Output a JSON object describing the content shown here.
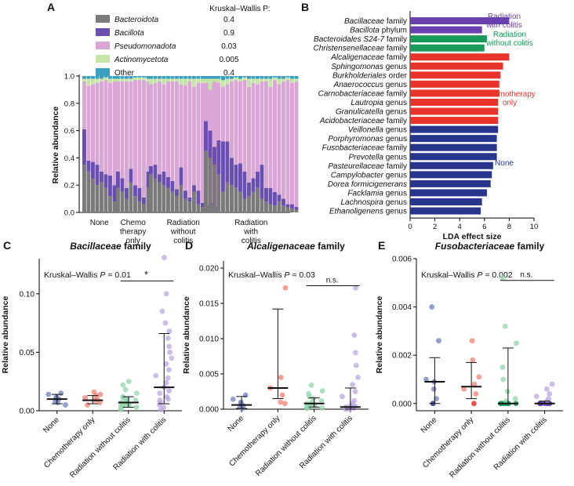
{
  "colors": {
    "Bacteroidota": "#7a7a7a",
    "Bacillota": "#6a4fb0",
    "Pseudomonadota": "#d9a6d6",
    "Actinomycetota": "#c6e5a8",
    "Other": "#3a9fc0",
    "radiation_colitis": "#6a3fb0",
    "radiation_no_colitis": "#1a9a58",
    "chemo": "#e8342a",
    "none": "#27358c",
    "dot_none": "#6f7fc0",
    "dot_chemo": "#f08070",
    "dot_rad_no": "#90d4a8",
    "dot_rad_col": "#b9a6e0"
  },
  "chart_data": [
    {
      "panel": "A",
      "type": "bar",
      "stacked": true,
      "ylabel": "Relative abundance",
      "ylim": [
        0,
        1.0
      ],
      "yticks": [
        "0.0",
        "0.2",
        "0.4",
        "0.6",
        "0.8",
        "1.0"
      ],
      "stat_header": "Kruskal–Wallis P:",
      "legend": [
        {
          "name": "Bacteroidota",
          "p": "0.4",
          "color": "#7a7a7a"
        },
        {
          "name": "Bacillota",
          "p": "0.9",
          "color": "#6a4fb0"
        },
        {
          "name": "Pseudomonadota",
          "p": "0.03",
          "color": "#d9a6d6"
        },
        {
          "name": "Actinomycetota",
          "p": "0.005",
          "color": "#c6e5a8"
        },
        {
          "name": "Other",
          "p": "0.4",
          "color": "#3a9fc0"
        }
      ],
      "groups": [
        {
          "label_lines": [
            "None"
          ],
          "samples": [
            [
              0.35,
              0.26,
              0.35,
              0.02
            ],
            [
              0.3,
              0.08,
              0.55,
              0.05
            ],
            [
              0.25,
              0.12,
              0.57,
              0.04
            ],
            [
              0.2,
              0.15,
              0.6,
              0.03
            ],
            [
              0.22,
              0.08,
              0.66,
              0.02
            ],
            [
              0.18,
              0.1,
              0.69,
              0.02
            ],
            [
              0.12,
              0.15,
              0.68,
              0.03
            ],
            [
              0.08,
              0.12,
              0.76,
              0.02
            ]
          ]
        },
        {
          "label_lines": [
            "Chemo",
            "therapy",
            "only"
          ],
          "samples": [
            [
              0.18,
              0.12,
              0.66,
              0.02
            ],
            [
              0.15,
              0.1,
              0.71,
              0.02
            ],
            [
              0.1,
              0.08,
              0.78,
              0.02
            ],
            [
              0.22,
              0.1,
              0.64,
              0.02
            ],
            [
              0.12,
              0.08,
              0.77,
              0.02
            ],
            [
              0.08,
              0.1,
              0.79,
              0.02
            ],
            [
              0.06,
              0.05,
              0.86,
              0.02
            ],
            [
              0.18,
              0.12,
              0.66,
              0.02
            ]
          ]
        },
        {
          "label_lines": [
            "Radiation",
            "without",
            "colitis"
          ],
          "samples": [
            [
              0.28,
              0.06,
              0.6,
              0.04
            ],
            [
              0.25,
              0.1,
              0.6,
              0.03
            ],
            [
              0.22,
              0.06,
              0.68,
              0.02
            ],
            [
              0.2,
              0.1,
              0.64,
              0.04
            ],
            [
              0.18,
              0.08,
              0.7,
              0.02
            ],
            [
              0.15,
              0.08,
              0.73,
              0.02
            ],
            [
              0.12,
              0.05,
              0.79,
              0.02
            ],
            [
              0.2,
              0.13,
              0.61,
              0.04
            ],
            [
              0.1,
              0.06,
              0.77,
              0.05
            ],
            [
              0.08,
              0.03,
              0.85,
              0.02
            ],
            [
              0.15,
              0.05,
              0.72,
              0.06
            ],
            [
              0.06,
              0.1,
              0.79,
              0.03
            ],
            [
              0.04,
              0.03,
              0.88,
              0.03
            ],
            [
              0.03,
              0.02,
              0.91,
              0.02
            ],
            [
              0.05,
              0.02,
              0.88,
              0.03
            ],
            [
              0.02,
              0.02,
              0.92,
              0.02
            ]
          ]
        },
        {
          "label_lines": [
            "Radiation",
            "with",
            "colitis"
          ],
          "samples": [
            [
              0.45,
              0.22,
              0.28,
              0.03
            ],
            [
              0.4,
              0.2,
              0.3,
              0.08
            ],
            [
              0.35,
              0.13,
              0.48,
              0.02
            ],
            [
              0.28,
              0.25,
              0.42,
              0.03
            ],
            [
              0.15,
              0.37,
              0.4,
              0.05
            ],
            [
              0.22,
              0.3,
              0.42,
              0.04
            ],
            [
              0.2,
              0.2,
              0.56,
              0.02
            ],
            [
              0.18,
              0.17,
              0.62,
              0.02
            ],
            [
              0.15,
              0.21,
              0.6,
              0.02
            ],
            [
              0.1,
              0.2,
              0.67,
              0.02
            ],
            [
              0.12,
              0.1,
              0.7,
              0.06
            ],
            [
              0.15,
              0.1,
              0.7,
              0.03
            ],
            [
              0.18,
              0.12,
              0.64,
              0.04
            ],
            [
              0.1,
              0.25,
              0.61,
              0.02
            ],
            [
              0.08,
              0.1,
              0.78,
              0.02
            ],
            [
              0.06,
              0.12,
              0.74,
              0.06
            ],
            [
              0.05,
              0.1,
              0.82,
              0.02
            ],
            [
              0.08,
              0.05,
              0.81,
              0.04
            ],
            [
              0.05,
              0.05,
              0.86,
              0.02
            ],
            [
              0.04,
              0.02,
              0.91,
              0.02
            ],
            [
              0.03,
              0.03,
              0.89,
              0.03
            ],
            [
              0.02,
              0.02,
              0.92,
              0.02
            ]
          ]
        }
      ]
    },
    {
      "panel": "B",
      "type": "bar",
      "orientation": "horizontal",
      "xlabel": "LDA effect size",
      "xlim": [
        0,
        10
      ],
      "xticks": [
        "0",
        "2",
        "4",
        "6",
        "8",
        "10"
      ],
      "groups": [
        {
          "label_lines": [
            "Radiation",
            "with colitis"
          ],
          "color": "#6a3fb0"
        },
        {
          "label_lines": [
            "Radiation",
            "without colitis"
          ],
          "color": "#1a9a58"
        },
        {
          "label_lines": [
            "Chemotherapy",
            "only"
          ],
          "color": "#e8342a"
        },
        {
          "label_lines": [
            "None"
          ],
          "color": "#27358c"
        }
      ],
      "taxa": [
        {
          "name": "Bacillaceae",
          "rank": "family",
          "value": 8.0,
          "group": 0
        },
        {
          "name": "Bacillota",
          "rank": "phylum",
          "value": 5.8,
          "group": 0
        },
        {
          "name": "Bacteroidales S24-7",
          "rank": "family",
          "value": 6.2,
          "group": 1
        },
        {
          "name": "Christensenellaceae",
          "rank": "family",
          "value": 6.0,
          "group": 1
        },
        {
          "name": "Alcaligenaceae",
          "rank": "family",
          "value": 8.0,
          "group": 2
        },
        {
          "name": "Sphingomonas",
          "rank": "genus",
          "value": 7.5,
          "group": 2
        },
        {
          "name": "Burkholderiales",
          "rank": "order",
          "value": 7.3,
          "group": 2
        },
        {
          "name": "Anaerococcus",
          "rank": "genus",
          "value": 7.2,
          "group": 2
        },
        {
          "name": "Carnobacteriaceae",
          "rank": "family",
          "value": 7.2,
          "group": 2
        },
        {
          "name": "Lautropia",
          "rank": "genus",
          "value": 7.1,
          "group": 2
        },
        {
          "name": "Granulicatella",
          "rank": "genus",
          "value": 7.1,
          "group": 2
        },
        {
          "name": "Acidobacteriaceae",
          "rank": "family",
          "value": 7.1,
          "group": 2
        },
        {
          "name": "Veillonella",
          "rank": "genus",
          "value": 7.1,
          "group": 3
        },
        {
          "name": "Porphyromonas",
          "rank": "genus",
          "value": 7.0,
          "group": 3
        },
        {
          "name": "Fusobacteriaceae",
          "rank": "family",
          "value": 7.0,
          "group": 3
        },
        {
          "name": "Prevotella",
          "rank": "genus",
          "value": 7.0,
          "group": 3
        },
        {
          "name": "Pasteurellaceae",
          "rank": "family",
          "value": 6.7,
          "group": 3
        },
        {
          "name": "Campylobacter",
          "rank": "genus",
          "value": 6.6,
          "group": 3
        },
        {
          "name": "Dorea formicigenerans",
          "rank": "",
          "value": 6.5,
          "group": 3
        },
        {
          "name": "Facklamia",
          "rank": "genus",
          "value": 6.2,
          "group": 3
        },
        {
          "name": "Lachnospira",
          "rank": "genus",
          "value": 5.8,
          "group": 3
        },
        {
          "name": "Ethanoligenens",
          "rank": "genus",
          "value": 5.7,
          "group": 3
        }
      ]
    },
    {
      "panel": "C",
      "type": "scatter",
      "title_name": "Bacillaceae",
      "title_rank": "family",
      "ylabel": "Relative abundance",
      "ylim": [
        0,
        0.13
      ],
      "yticks": [
        {
          "v": 0,
          "t": "0.00"
        },
        {
          "v": 0.05,
          "t": "0.05"
        },
        {
          "v": 0.1,
          "t": "0.10"
        }
      ],
      "kw_prefix": "Kruskal–Wallis",
      "kw_p": "P = 0.01",
      "bracket": {
        "from": 2,
        "to": 3,
        "y": 0.111,
        "label": "*"
      },
      "categories": [
        "None",
        "Chemotherapy only",
        "Radiation without colitis",
        "Radiation with colitis"
      ],
      "groups": [
        {
          "median": 0.01,
          "low": 0.006,
          "high": 0.014,
          "points": [
            0.005,
            0.007,
            0.008,
            0.01,
            0.011,
            0.012,
            0.014,
            0.015
          ]
        },
        {
          "median": 0.009,
          "low": 0.006,
          "high": 0.013,
          "points": [
            0.005,
            0.007,
            0.009,
            0.01,
            0.011,
            0.013,
            0.014,
            0.016
          ]
        },
        {
          "median": 0.007,
          "low": 0.003,
          "high": 0.012,
          "points": [
            0.001,
            0.002,
            0.003,
            0.004,
            0.005,
            0.005,
            0.006,
            0.006,
            0.007,
            0.008,
            0.009,
            0.01,
            0.011,
            0.012,
            0.015,
            0.018,
            0.022,
            0.025
          ]
        },
        {
          "median": 0.02,
          "low": 0.006,
          "high": 0.066,
          "points": [
            0.001,
            0.003,
            0.005,
            0.007,
            0.009,
            0.01,
            0.012,
            0.015,
            0.017,
            0.02,
            0.024,
            0.028,
            0.03,
            0.035,
            0.04,
            0.045,
            0.05,
            0.055,
            0.062,
            0.068,
            0.075,
            0.085,
            0.1,
            0.131
          ]
        }
      ]
    },
    {
      "panel": "D",
      "type": "scatter",
      "title_name": "Alcaligenaceae",
      "title_rank": "family",
      "ylabel": "Relative abundance",
      "ylim": [
        0,
        0.021
      ],
      "yticks": [
        {
          "v": 0,
          "t": "0.000"
        },
        {
          "v": 0.005,
          "t": "0.005"
        },
        {
          "v": 0.01,
          "t": "0.010"
        },
        {
          "v": 0.015,
          "t": "0.015"
        },
        {
          "v": 0.02,
          "t": "0.020"
        }
      ],
      "kw_prefix": "Kruskal–Wallis",
      "kw_p": "P = 0.03",
      "bracket": {
        "from": 2,
        "to": 3,
        "y": 0.0175,
        "label": "n.s."
      },
      "categories": [
        "None",
        "Chemotherapy only",
        "Radiation without colitis",
        "Radiation with colitis"
      ],
      "groups": [
        {
          "median": 0.0006,
          "low": 0.0001,
          "high": 0.0018,
          "points": [
            0.0001,
            0.0003,
            0.0005,
            0.0008,
            0.001,
            0.0014,
            0.002
          ]
        },
        {
          "median": 0.003,
          "low": 0.0015,
          "high": 0.0142,
          "points": [
            0.0008,
            0.001,
            0.002,
            0.003,
            0.0045,
            0.0172
          ]
        },
        {
          "median": 0.0008,
          "low": 0.0003,
          "high": 0.0016,
          "points": [
            0.0001,
            0.0002,
            0.0003,
            0.0004,
            0.0005,
            0.0006,
            0.0007,
            0.0008,
            0.001,
            0.0012,
            0.0015,
            0.0018,
            0.0022,
            0.0026,
            0.0034
          ]
        },
        {
          "median": 0.0003,
          "low": 0.0,
          "high": 0.003,
          "points": [
            0.0,
            0.0,
            0.0001,
            0.0001,
            0.0002,
            0.0002,
            0.0003,
            0.0004,
            0.0005,
            0.0008,
            0.0012,
            0.0018,
            0.0025,
            0.0035,
            0.0045,
            0.0062,
            0.008,
            0.0105,
            0.0172
          ]
        }
      ]
    },
    {
      "panel": "E",
      "type": "scatter",
      "title_name": "Fusobacteriaceae",
      "title_rank": "family",
      "ylabel": "Relative abundance",
      "ylim": [
        -0.0003,
        0.006
      ],
      "yticks": [
        {
          "v": 0,
          "t": "0.000"
        },
        {
          "v": 0.002,
          "t": "0.002"
        },
        {
          "v": 0.004,
          "t": "0.004"
        },
        {
          "v": 0.006,
          "t": "0.006"
        }
      ],
      "kw_prefix": "Kruskal–Wallis",
      "kw_p": "P = 0.002",
      "bracket": {
        "from": 2,
        "to": 3,
        "y": 0.0051,
        "label": "n.s."
      },
      "categories": [
        "None",
        "Chemotherapy only",
        "Radiation without colitis",
        "Radiation with colitis"
      ],
      "groups": [
        {
          "median": 0.0009,
          "low": 0.0,
          "high": 0.0019,
          "points": [
            0.0,
            0.0002,
            0.0006,
            0.0009,
            0.001,
            0.0026,
            0.004
          ]
        },
        {
          "median": 0.0007,
          "low": 0.0002,
          "high": 0.0017,
          "points": [
            0.0,
            0.0004,
            0.0006,
            0.0008,
            0.0011,
            0.0018,
            0.0026
          ]
        },
        {
          "median": 0.0,
          "low": 0.0,
          "high": 0.0023,
          "points": [
            0.0,
            0.0,
            0.0,
            0.0,
            0.0,
            0.0,
            0.0,
            0.0001,
            0.0002,
            0.0005,
            0.001,
            0.0015,
            0.0025,
            0.0032,
            0.0052
          ]
        },
        {
          "median": 0.0,
          "low": 0.0,
          "high": 0.0001,
          "points": [
            0.0,
            0.0,
            0.0,
            0.0,
            0.0,
            0.0,
            0.0,
            0.0,
            0.0001,
            0.0002,
            0.0003,
            0.0004,
            0.0006,
            0.0008
          ]
        }
      ]
    }
  ]
}
